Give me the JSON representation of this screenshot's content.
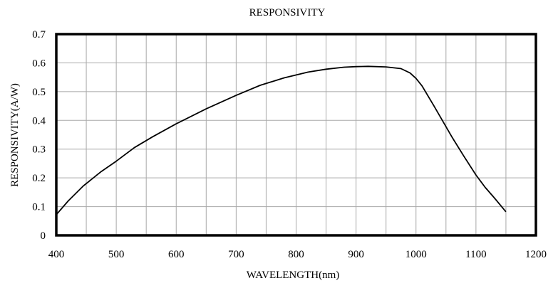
{
  "chart_data": {
    "type": "line",
    "title": "RESPONSIVITY",
    "xlabel": "WAVELENGTH(nm)",
    "ylabel": "RESPONSIVITY(A/W)",
    "xlim": [
      400,
      1200
    ],
    "ylim": [
      0,
      0.7
    ],
    "xticks": [
      400,
      500,
      600,
      700,
      800,
      900,
      1000,
      1100,
      1200
    ],
    "yticks": [
      0,
      0.1,
      0.2,
      0.3,
      0.4,
      0.5,
      0.6,
      0.7
    ],
    "xtick_labels": [
      "400",
      "500",
      "600",
      "700",
      "800",
      "900",
      "1000",
      "1100",
      "1200"
    ],
    "ytick_labels": [
      "0",
      "0.1",
      "0.2",
      "0.3",
      "0.4",
      "0.5",
      "0.6",
      "0.7"
    ],
    "grid": true,
    "x_minor_grid_step": 50,
    "series": [
      {
        "x": [
          400,
          420,
          445,
          475,
          500,
          530,
          560,
          600,
          650,
          700,
          740,
          780,
          820,
          850,
          880,
          900,
          920,
          950,
          975,
          990,
          1000,
          1010,
          1030,
          1060,
          1080,
          1100,
          1115,
          1130,
          1150
        ],
        "y": [
          0.072,
          0.12,
          0.172,
          0.222,
          0.258,
          0.305,
          0.342,
          0.388,
          0.44,
          0.487,
          0.522,
          0.548,
          0.568,
          0.578,
          0.585,
          0.587,
          0.588,
          0.586,
          0.58,
          0.565,
          0.546,
          0.52,
          0.45,
          0.342,
          0.275,
          0.21,
          0.168,
          0.132,
          0.082
        ]
      }
    ]
  }
}
